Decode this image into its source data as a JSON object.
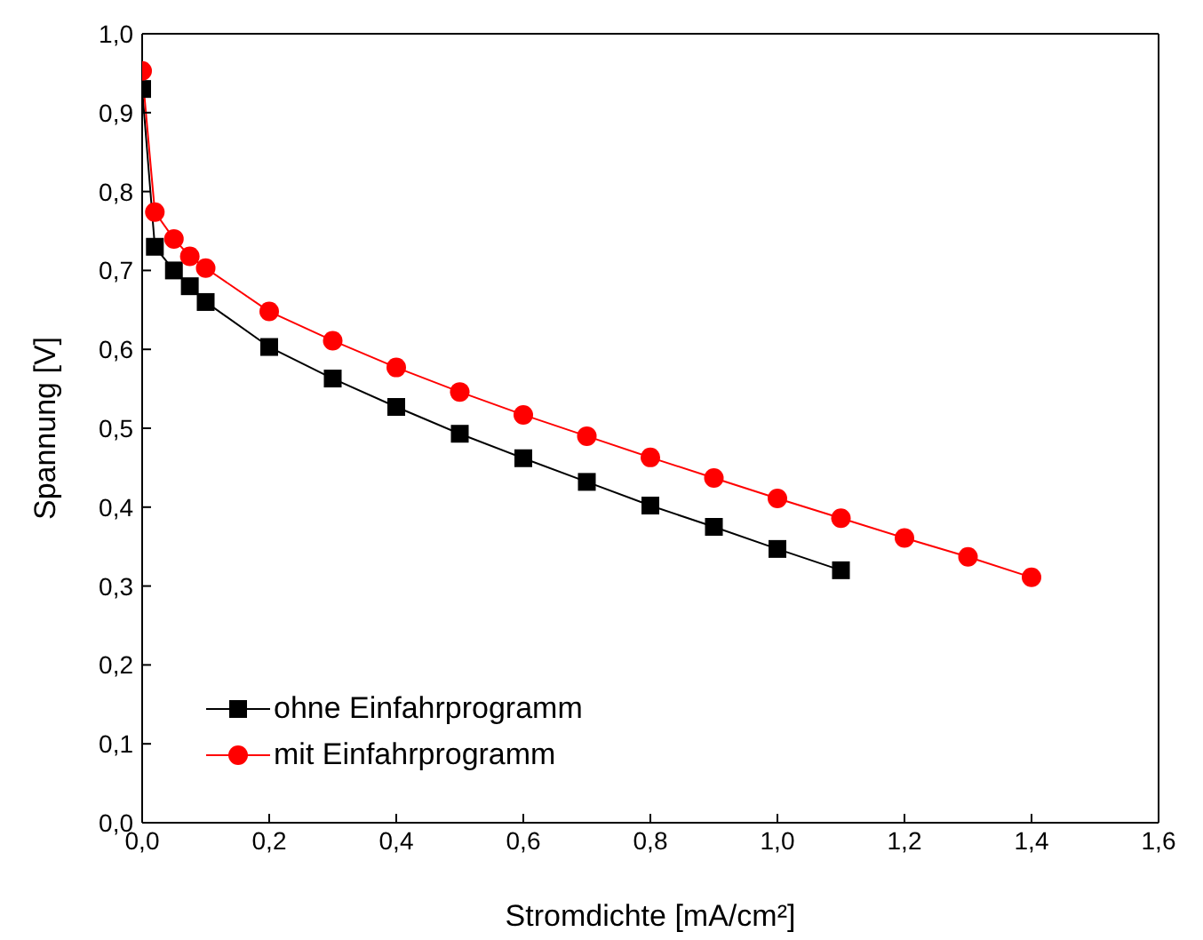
{
  "chart_data": {
    "type": "line",
    "xlabel": "Stromdichte [mA/cm²]",
    "ylabel": "Spannung [V]",
    "xlim": [
      0,
      1.6
    ],
    "ylim": [
      0,
      1.0
    ],
    "xticks": [
      {
        "value": 0,
        "label": "0,0"
      },
      {
        "value": 0.2,
        "label": "0,2"
      },
      {
        "value": 0.4,
        "label": "0,4"
      },
      {
        "value": 0.6,
        "label": "0,6"
      },
      {
        "value": 0.8,
        "label": "0,8"
      },
      {
        "value": 1.0,
        "label": "1,0"
      },
      {
        "value": 1.2,
        "label": "1,2"
      },
      {
        "value": 1.4,
        "label": "1,4"
      },
      {
        "value": 1.6,
        "label": "1,6"
      }
    ],
    "yticks": [
      {
        "value": 0,
        "label": "0,0"
      },
      {
        "value": 0.1,
        "label": "0,1"
      },
      {
        "value": 0.2,
        "label": "0,2"
      },
      {
        "value": 0.3,
        "label": "0,3"
      },
      {
        "value": 0.4,
        "label": "0,4"
      },
      {
        "value": 0.5,
        "label": "0,5"
      },
      {
        "value": 0.6,
        "label": "0,6"
      },
      {
        "value": 0.7,
        "label": "0,7"
      },
      {
        "value": 0.8,
        "label": "0,8"
      },
      {
        "value": 0.9,
        "label": "0,9"
      },
      {
        "value": 1.0,
        "label": "1,0"
      }
    ],
    "legend": "bottom left",
    "line_style": "solid",
    "series": [
      {
        "name": "ohne Einfahrprogramm",
        "color": "#000000",
        "marker": "square",
        "x": [
          0,
          0.02,
          0.05,
          0.075,
          0.1,
          0.2,
          0.3,
          0.4,
          0.5,
          0.6,
          0.7,
          0.8,
          0.9,
          1.0,
          1.1
        ],
        "values": [
          0.93,
          0.73,
          0.7,
          0.68,
          0.66,
          0.603,
          0.563,
          0.527,
          0.493,
          0.462,
          0.432,
          0.402,
          0.375,
          0.347,
          0.32
        ]
      },
      {
        "name": "mit Einfahrprogramm",
        "color": "#ff0000",
        "marker": "circle",
        "x": [
          0,
          0.02,
          0.05,
          0.075,
          0.1,
          0.2,
          0.3,
          0.4,
          0.5,
          0.6,
          0.7,
          0.8,
          0.9,
          1.0,
          1.1,
          1.2,
          1.3,
          1.4
        ],
        "values": [
          0.953,
          0.774,
          0.74,
          0.718,
          0.703,
          0.648,
          0.611,
          0.577,
          0.546,
          0.517,
          0.49,
          0.463,
          0.437,
          0.411,
          0.386,
          0.361,
          0.337,
          0.311
        ]
      }
    ]
  }
}
